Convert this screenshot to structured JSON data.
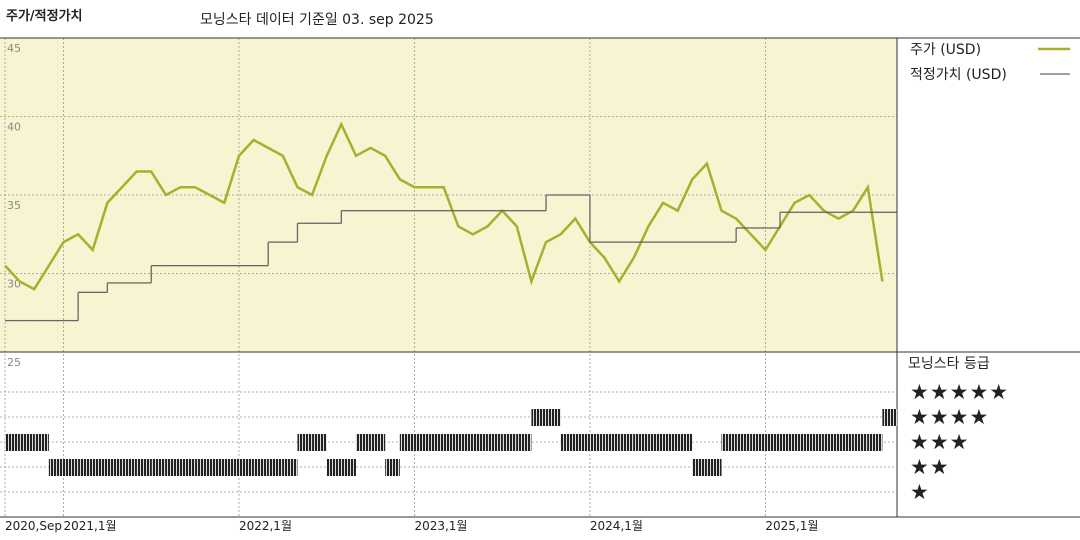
{
  "chart_data": {
    "type": "line",
    "title": "주가/적정가치",
    "subtitle": "모닝스타 데이터 기준일 03. sep 2025",
    "x": [
      "2020-09",
      "2020-10",
      "2020-11",
      "2020-12",
      "2021-01",
      "2021-02",
      "2021-03",
      "2021-04",
      "2021-05",
      "2021-06",
      "2021-07",
      "2021-08",
      "2021-09",
      "2021-10",
      "2021-11",
      "2021-12",
      "2022-01",
      "2022-02",
      "2022-03",
      "2022-04",
      "2022-05",
      "2022-06",
      "2022-07",
      "2022-08",
      "2022-09",
      "2022-10",
      "2022-11",
      "2022-12",
      "2023-01",
      "2023-02",
      "2023-03",
      "2023-04",
      "2023-05",
      "2023-06",
      "2023-07",
      "2023-08",
      "2023-09",
      "2023-10",
      "2023-11",
      "2023-12",
      "2024-01",
      "2024-02",
      "2024-03",
      "2024-04",
      "2024-05",
      "2024-06",
      "2024-07",
      "2024-08",
      "2024-09",
      "2024-10",
      "2024-11",
      "2024-12",
      "2025-01",
      "2025-02",
      "2025-03",
      "2025-04",
      "2025-05",
      "2025-06",
      "2025-07",
      "2025-08",
      "2025-09"
    ],
    "series": [
      {
        "name": "주가 (USD)",
        "color": "#a9ae2c",
        "style": "line",
        "values": [
          30.5,
          29.5,
          29,
          30.5,
          32,
          32.5,
          31.5,
          34.5,
          35.5,
          36.5,
          36.5,
          35,
          35.5,
          35.5,
          35,
          34.5,
          37.5,
          38.5,
          38,
          37.5,
          35.5,
          35,
          37.5,
          39.5,
          37.5,
          38,
          37.5,
          36,
          35.5,
          35.5,
          35.5,
          33,
          32.5,
          33,
          34,
          33,
          29.5,
          32,
          32.5,
          33.5,
          32,
          31,
          29.5,
          31,
          33,
          34.5,
          34,
          36,
          37,
          34,
          33.5,
          32.5,
          31.5,
          33,
          34.5,
          35,
          34,
          33.5,
          34,
          35.5,
          29.5
        ]
      },
      {
        "name": "적정가치 (USD)",
        "color": "#666666",
        "style": "step",
        "values": [
          27,
          27,
          27,
          27,
          27,
          28.8,
          28.8,
          29.4,
          29.4,
          29.4,
          30.5,
          30.5,
          30.5,
          30.5,
          30.5,
          30.5,
          30.5,
          30.5,
          32,
          32,
          33.2,
          33.2,
          33.2,
          34,
          34,
          34,
          34,
          34,
          34,
          34,
          34,
          34,
          34,
          34,
          34,
          34,
          34,
          35,
          35,
          35,
          32,
          32,
          32,
          32,
          32,
          32,
          32,
          32,
          32,
          32,
          32.9,
          32.9,
          32.9,
          33.9,
          33.9,
          33.9,
          33.9,
          33.9,
          33.9,
          33.9,
          33.9
        ]
      }
    ],
    "xlim": [
      "2020-09",
      "2025-10"
    ],
    "xticks": [
      {
        "value": "2020-09",
        "label": "2020,Sep"
      },
      {
        "value": "2021-01",
        "label": "2021,1월"
      },
      {
        "value": "2022-01",
        "label": "2022,1월"
      },
      {
        "value": "2023-01",
        "label": "2023,1월"
      },
      {
        "value": "2024-01",
        "label": "2024,1월"
      },
      {
        "value": "2025-01",
        "label": "2025,1월"
      }
    ],
    "ylim": [
      25,
      45
    ],
    "yticks": [
      25,
      30,
      35,
      40,
      45
    ],
    "grid": true,
    "background": "#f7f4d2",
    "rating": {
      "title": "모닝스타 등급",
      "color": "#222222",
      "values": [
        3,
        3,
        3,
        2,
        2,
        2,
        2,
        2,
        2,
        2,
        2,
        2,
        2,
        2,
        2,
        2,
        2,
        2,
        2,
        2,
        3,
        3,
        2,
        2,
        3,
        3,
        2,
        3,
        3,
        3,
        3,
        3,
        3,
        3,
        3,
        3,
        4,
        4,
        3,
        3,
        3,
        3,
        3,
        3,
        3,
        3,
        3,
        2,
        2,
        3,
        3,
        3,
        3,
        3,
        3,
        3,
        3,
        3,
        3,
        3,
        4
      ],
      "ticks": [
        {
          "value": 5,
          "label": "★★★★★"
        },
        {
          "value": 4,
          "label": "★★★★"
        },
        {
          "value": 3,
          "label": "★★★"
        },
        {
          "value": 2,
          "label": "★★"
        },
        {
          "value": 1,
          "label": "★"
        }
      ]
    }
  }
}
